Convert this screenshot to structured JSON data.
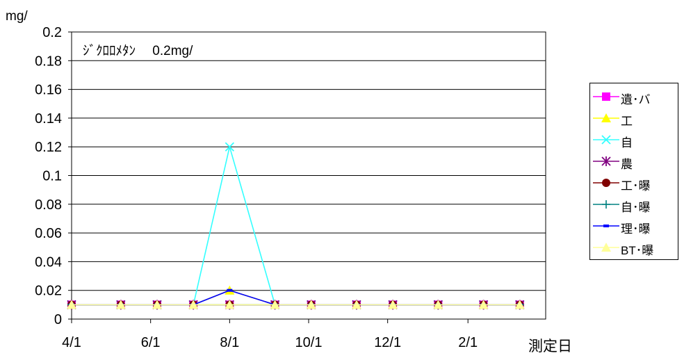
{
  "chart_data": {
    "type": "line",
    "title": "ｼﾞｸﾛﾛﾒﾀﾝ　 0.2mg/",
    "ylabel": "mg/",
    "xlabel": "測定日",
    "ylim": [
      0,
      0.2
    ],
    "yticks": [
      "0",
      "0.02",
      "0.04",
      "0.06",
      "0.08",
      "0.1",
      "0.12",
      "0.14",
      "0.16",
      "0.18",
      "0.2"
    ],
    "x_range_days": [
      0,
      366
    ],
    "x_ticks": [
      {
        "label": "4/1",
        "day": 0
      },
      {
        "label": "6/1",
        "day": 61
      },
      {
        "label": "8/1",
        "day": 122
      },
      {
        "label": "10/1",
        "day": 183
      },
      {
        "label": "12/1",
        "day": 244
      },
      {
        "label": "2/1",
        "day": 306
      }
    ],
    "x_dates": [
      "4/1",
      "5/9",
      "6/6",
      "7/4",
      "8/1",
      "9/5",
      "10/3",
      "11/7",
      "12/5",
      "1/9",
      "2/13",
      "3/13"
    ],
    "x_days": [
      0,
      38,
      66,
      94,
      122,
      157,
      185,
      220,
      248,
      283,
      318,
      346
    ],
    "grid": true,
    "legend_position": "right",
    "series": [
      {
        "name": "遺･バ",
        "color": "#ff00ff",
        "marker": "square",
        "values": [
          0.01,
          0.01,
          0.01,
          0.01,
          0.01,
          0.01,
          0.01,
          0.01,
          0.01,
          0.01,
          0.01,
          0.01
        ]
      },
      {
        "name": "工",
        "color": "#ffff00",
        "marker": "triangle",
        "values": [
          0.01,
          0.01,
          0.01,
          0.01,
          0.02,
          0.01,
          0.01,
          0.01,
          0.01,
          0.01,
          0.01,
          0.01
        ]
      },
      {
        "name": "自",
        "color": "#33ffff",
        "marker": "x",
        "values": [
          0.01,
          0.01,
          0.01,
          0.01,
          0.12,
          0.01,
          0.01,
          0.01,
          0.01,
          0.01,
          0.01,
          0.01
        ]
      },
      {
        "name": "農",
        "color": "#800080",
        "marker": "star",
        "values": [
          0.01,
          0.01,
          0.01,
          0.01,
          0.01,
          0.01,
          0.01,
          0.01,
          0.01,
          0.01,
          0.01,
          0.01
        ]
      },
      {
        "name": "工･曝",
        "color": "#800000",
        "marker": "circle",
        "values": [
          0.01,
          0.01,
          0.01,
          0.01,
          0.01,
          0.01,
          0.01,
          0.01,
          0.01,
          0.01,
          0.01,
          0.01
        ]
      },
      {
        "name": "自･曝",
        "color": "#008080",
        "marker": "plus",
        "values": [
          0.01,
          0.01,
          0.01,
          0.01,
          0.01,
          0.01,
          0.01,
          0.01,
          0.01,
          0.01,
          0.01,
          0.01
        ]
      },
      {
        "name": "理･曝",
        "color": "#0000ff",
        "marker": "dash",
        "values": [
          0.01,
          0.01,
          0.01,
          0.01,
          0.02,
          0.01,
          0.01,
          0.01,
          0.01,
          0.01,
          0.01,
          0.01
        ]
      },
      {
        "name": "BT･曝",
        "color": "#ffff99",
        "marker": "triangle",
        "values": [
          0.01,
          0.01,
          0.01,
          0.01,
          0.01,
          0.01,
          0.01,
          0.01,
          0.01,
          0.01,
          0.01,
          0.01
        ]
      }
    ]
  }
}
